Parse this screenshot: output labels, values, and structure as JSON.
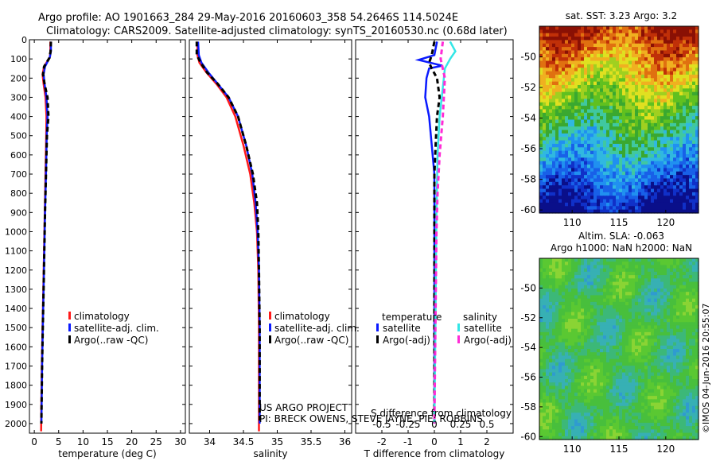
{
  "header": {
    "title_line1": "Argo profile: AO 1901663_284 29-May-2016 20160603_358 54.2646S 114.5024E",
    "title_line2": "Climatology: CARS2009. Satellite-adjusted climatology: synTS_20160530.nc (0.68d later)"
  },
  "colors": {
    "climatology": "#ff1a1a",
    "satellite": "#0a1aff",
    "argo": "#000000",
    "satellite_salinity": "#33e6e6",
    "argo_salinity": "#ff2bd6"
  },
  "chart_data": [
    {
      "type": "line",
      "panel": "temperature",
      "xlabel": "temperature (deg C)",
      "ylim": [
        2050,
        0
      ],
      "xlim": [
        -1,
        31
      ],
      "x_ticks": [
        "0",
        "5",
        "10",
        "15",
        "20",
        "25",
        "30"
      ],
      "y_ticks": [
        "0",
        "100",
        "200",
        "300",
        "400",
        "500",
        "600",
        "700",
        "800",
        "900",
        "1000",
        "1100",
        "1200",
        "1300",
        "1400",
        "1500",
        "1600",
        "1700",
        "1800",
        "1900",
        "2000"
      ],
      "legend": [
        "climatology",
        "satellite-adj. clim.",
        "Argo(..raw -QC)"
      ],
      "series": [
        {
          "name": "climatology",
          "style": "solid",
          "points": [
            [
              3.3,
              10
            ],
            [
              3.3,
              60
            ],
            [
              3.2,
              90
            ],
            [
              2.0,
              140
            ],
            [
              1.7,
              180
            ],
            [
              1.9,
              230
            ],
            [
              2.3,
              300
            ],
            [
              2.5,
              400
            ],
            [
              2.45,
              500
            ],
            [
              2.3,
              700
            ],
            [
              2.15,
              900
            ],
            [
              2.0,
              1100
            ],
            [
              1.85,
              1300
            ],
            [
              1.7,
              1500
            ],
            [
              1.55,
              1700
            ],
            [
              1.45,
              1900
            ],
            [
              1.4,
              2040
            ]
          ]
        },
        {
          "name": "satellite-adj. clim.",
          "style": "solid",
          "points": [
            [
              3.4,
              10
            ],
            [
              3.4,
              60
            ],
            [
              3.2,
              90
            ],
            [
              2.2,
              140
            ],
            [
              1.9,
              180
            ],
            [
              2.1,
              230
            ],
            [
              2.5,
              300
            ],
            [
              2.7,
              400
            ],
            [
              2.55,
              500
            ],
            [
              2.4,
              700
            ],
            [
              2.2,
              900
            ],
            [
              2.05,
              1100
            ],
            [
              1.9,
              1300
            ],
            [
              1.75,
              1500
            ],
            [
              1.6,
              1700
            ],
            [
              1.5,
              1900
            ],
            [
              1.45,
              2000
            ]
          ]
        },
        {
          "name": "Argo(..raw -QC)",
          "style": "dashed",
          "points": [
            [
              3.4,
              10
            ],
            [
              3.35,
              60
            ],
            [
              3.1,
              95
            ],
            [
              2.0,
              140
            ],
            [
              1.8,
              180
            ],
            [
              2.1,
              230
            ],
            [
              2.7,
              300
            ],
            [
              2.9,
              400
            ],
            [
              2.6,
              500
            ],
            [
              2.4,
              700
            ],
            [
              2.2,
              900
            ],
            [
              2.05,
              1100
            ],
            [
              1.9,
              1300
            ],
            [
              1.75,
              1500
            ],
            [
              1.6,
              1700
            ],
            [
              1.5,
              1900
            ],
            [
              1.45,
              2000
            ]
          ]
        }
      ]
    },
    {
      "type": "line",
      "panel": "salinity",
      "xlabel": "salinity",
      "ylim": [
        2050,
        0
      ],
      "xlim": [
        33.7,
        36.1
      ],
      "x_ticks": [
        "34",
        "34.5",
        "35",
        "35.5",
        "36"
      ],
      "legend": [
        "climatology",
        "satellite-adj. clim.",
        "Argo(..raw -QC)"
      ],
      "annotation_line1": "US ARGO PROJECT",
      "annotation_line2": "PI: BRECK OWENS, STEVE JAYNE, PIE: ROBBINS",
      "series": [
        {
          "name": "climatology",
          "style": "solid",
          "points": [
            [
              33.82,
              10
            ],
            [
              33.82,
              80
            ],
            [
              33.85,
              120
            ],
            [
              33.95,
              170
            ],
            [
              34.1,
              230
            ],
            [
              34.25,
              300
            ],
            [
              34.38,
              400
            ],
            [
              34.5,
              550
            ],
            [
              34.6,
              700
            ],
            [
              34.66,
              850
            ],
            [
              34.7,
              1000
            ],
            [
              34.72,
              1200
            ],
            [
              34.73,
              1500
            ],
            [
              34.73,
              1800
            ],
            [
              34.73,
              2040
            ]
          ]
        },
        {
          "name": "satellite-adj. clim.",
          "style": "solid",
          "points": [
            [
              33.83,
              10
            ],
            [
              33.84,
              80
            ],
            [
              33.88,
              120
            ],
            [
              33.98,
              170
            ],
            [
              34.12,
              230
            ],
            [
              34.28,
              300
            ],
            [
              34.42,
              400
            ],
            [
              34.54,
              550
            ],
            [
              34.63,
              700
            ],
            [
              34.68,
              850
            ],
            [
              34.71,
              1000
            ],
            [
              34.73,
              1200
            ],
            [
              34.74,
              1500
            ],
            [
              34.74,
              1800
            ],
            [
              34.74,
              2000
            ]
          ]
        },
        {
          "name": "Argo(..raw -QC)",
          "style": "dashed",
          "points": [
            [
              33.81,
              10
            ],
            [
              33.81,
              80
            ],
            [
              33.87,
              120
            ],
            [
              33.96,
              170
            ],
            [
              34.12,
              230
            ],
            [
              34.28,
              300
            ],
            [
              34.42,
              400
            ],
            [
              34.54,
              550
            ],
            [
              34.64,
              700
            ],
            [
              34.7,
              850
            ],
            [
              34.72,
              1000
            ],
            [
              34.73,
              1200
            ],
            [
              34.74,
              1500
            ],
            [
              34.74,
              1800
            ],
            [
              34.74,
              2000
            ]
          ]
        }
      ]
    },
    {
      "type": "line",
      "panel": "difference",
      "xlabel": "T difference from climatology",
      "xlabel_top": "S difference from climatology",
      "ylim": [
        2050,
        0
      ],
      "xlim": [
        -3,
        3
      ],
      "x_ticks": [
        "-2",
        "-1",
        "0",
        "1",
        "2"
      ],
      "x_ticks_top": [
        "-0.5",
        "-0.25",
        "0",
        "0.25",
        "0.5"
      ],
      "legend_headers": [
        "temperature",
        "salinity"
      ],
      "legend": [
        "satellite",
        "Argo(-adj)",
        "satellite",
        "Argo(-adj)"
      ],
      "series": [
        {
          "name": "satellite",
          "quantity": "temperature",
          "style": "solid",
          "points": [
            [
              0.1,
              10
            ],
            [
              0.0,
              80
            ],
            [
              -0.6,
              105
            ],
            [
              0.0,
              125
            ],
            [
              0.3,
              135
            ],
            [
              -0.2,
              150
            ],
            [
              -0.3,
              200
            ],
            [
              -0.35,
              300
            ],
            [
              -0.2,
              400
            ],
            [
              -0.1,
              550
            ],
            [
              0.0,
              700
            ],
            [
              0.0,
              1000
            ],
            [
              0.0,
              1500
            ],
            [
              0.0,
              2000
            ]
          ]
        },
        {
          "name": "Argo(-adj)",
          "quantity": "temperature",
          "style": "dashed",
          "points": [
            [
              0.0,
              10
            ],
            [
              -0.1,
              80
            ],
            [
              -0.2,
              120
            ],
            [
              -0.1,
              150
            ],
            [
              0.1,
              200
            ],
            [
              0.2,
              300
            ],
            [
              0.1,
              400
            ],
            [
              0.05,
              550
            ],
            [
              0.0,
              700
            ],
            [
              0.0,
              1000
            ],
            [
              0.0,
              1500
            ],
            [
              0.0,
              2000
            ]
          ]
        },
        {
          "name": "satellite",
          "quantity": "salinity",
          "style": "solid",
          "points": [
            [
              0.15,
              10
            ],
            [
              0.2,
              60
            ],
            [
              0.15,
              100
            ],
            [
              0.1,
              150
            ],
            [
              0.08,
              250
            ],
            [
              0.05,
              400
            ],
            [
              0.03,
              600
            ],
            [
              0.02,
              900
            ],
            [
              0.01,
              1500
            ],
            [
              0.0,
              2000
            ]
          ]
        },
        {
          "name": "Argo(-adj)",
          "quantity": "salinity",
          "style": "dashed",
          "points": [
            [
              0.08,
              10
            ],
            [
              0.06,
              100
            ],
            [
              0.1,
              200
            ],
            [
              0.09,
              300
            ],
            [
              0.08,
              400
            ],
            [
              0.05,
              600
            ],
            [
              0.03,
              800
            ],
            [
              0.02,
              1000
            ],
            [
              0.01,
              1500
            ],
            [
              0.0,
              2000
            ]
          ]
        }
      ]
    },
    {
      "type": "heatmap",
      "panel": "sst_map",
      "title": "sat. SST: 3.23 Argo: 3.2",
      "x_ticks": [
        "110",
        "115",
        "120"
      ],
      "y_ticks": [
        "-50",
        "-52",
        "-54",
        "-56",
        "-58",
        "-60"
      ],
      "xlim": [
        106.5,
        123.5
      ],
      "ylim": [
        -60.2,
        -48
      ]
    },
    {
      "type": "heatmap",
      "panel": "sla_map",
      "title_line1": "Altim. SLA: -0.063",
      "title_line2": "Argo h1000: NaN h2000: NaN",
      "x_ticks": [
        "110",
        "115",
        "120"
      ],
      "y_ticks": [
        "-50",
        "-52",
        "-54",
        "-56",
        "-58",
        "-60"
      ],
      "xlim": [
        106.5,
        123.5
      ],
      "ylim": [
        -60.2,
        -48
      ]
    }
  ],
  "footer": {
    "stamp": "©IMOS 04-Jun-2016 20:55:07"
  }
}
